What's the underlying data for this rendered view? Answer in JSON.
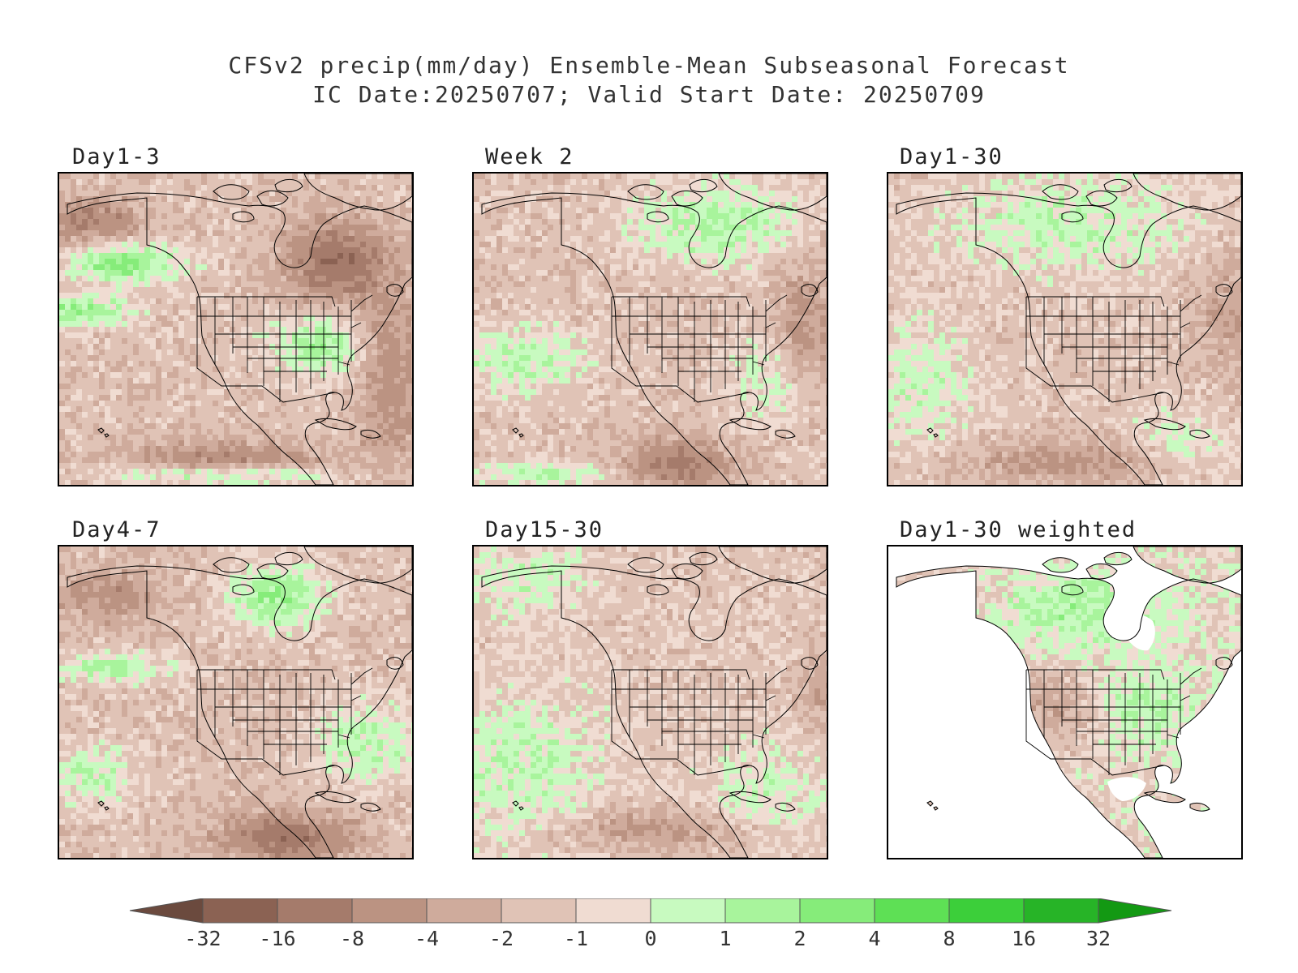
{
  "title": {
    "line1": "CFSv2 precip(mm/day) Ensemble-Mean Subseasonal Forecast",
    "line2": "IC Date:20250707; Valid Start Date: 20250709"
  },
  "panels": [
    {
      "id": "day1-3",
      "label": "Day1-3",
      "theme": "day13"
    },
    {
      "id": "week2",
      "label": "Week 2",
      "theme": "week2"
    },
    {
      "id": "day1-30",
      "label": "Day1-30",
      "theme": "day130"
    },
    {
      "id": "day4-7",
      "label": "Day4-7",
      "theme": "day47"
    },
    {
      "id": "day15-30",
      "label": "Day15-30",
      "theme": "day1530"
    },
    {
      "id": "day1-30-weighted",
      "label": "Day1-30 weighted",
      "theme": "weighted"
    }
  ],
  "colorbar": {
    "ticks": [
      "-32",
      "-16",
      "-8",
      "-4",
      "-2",
      "-1",
      "0",
      "1",
      "2",
      "4",
      "8",
      "16",
      "32"
    ],
    "colors": [
      "#6b4a3e",
      "#8b6253",
      "#a57b6b",
      "#bb9382",
      "#cfab9c",
      "#e0c3b6",
      "#f0dcd2",
      "#c8fac0",
      "#a8f49c",
      "#86ec7a",
      "#5ee055",
      "#3ccf3a",
      "#27b427",
      "#139913"
    ]
  }
}
